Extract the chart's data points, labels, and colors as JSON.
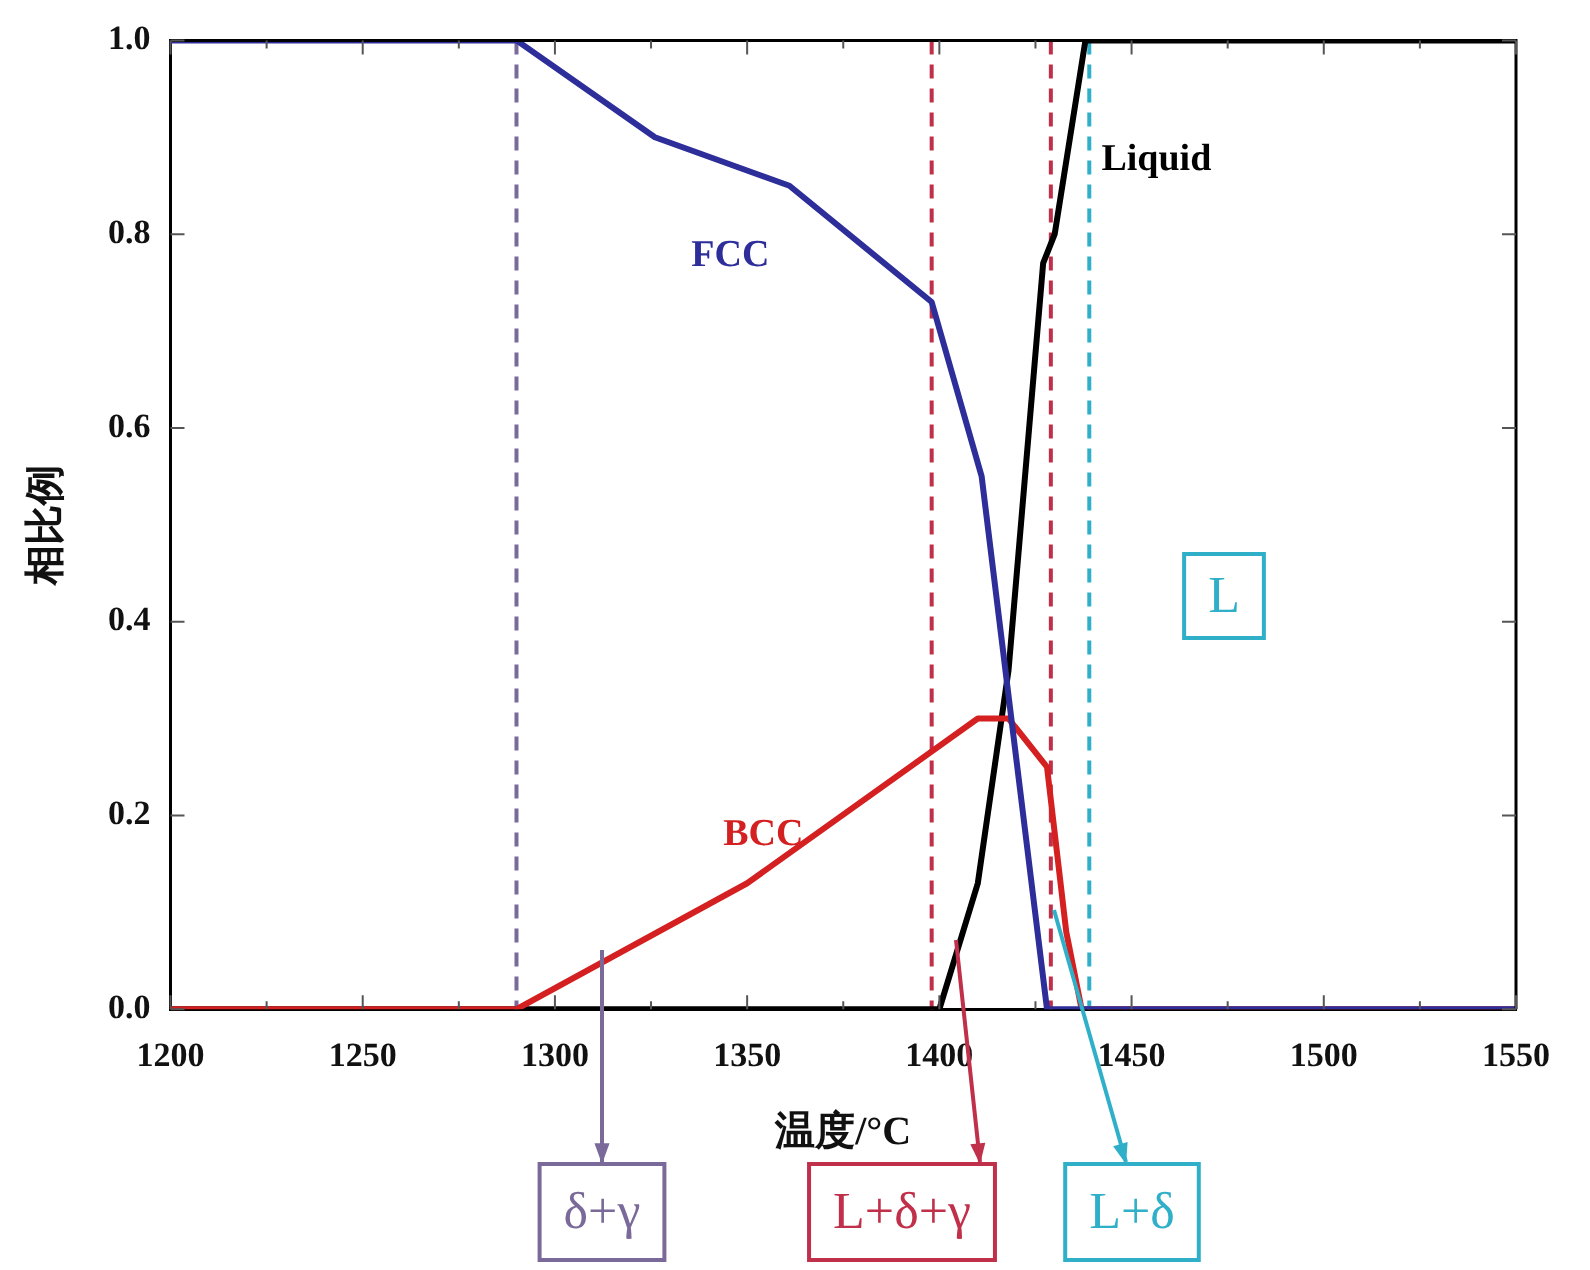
{
  "chart_data": {
    "type": "line",
    "xlabel": "温度/°C",
    "ylabel": "相比例",
    "xlim": [
      1200,
      1550
    ],
    "ylim": [
      0,
      1
    ],
    "xticks": [
      1200,
      {
        "value": 1225,
        "label": null
      },
      1250,
      {
        "value": 1275,
        "label": null
      },
      1300,
      {
        "value": 1325,
        "label": null
      },
      1350,
      {
        "value": 1375,
        "label": null
      },
      1400,
      {
        "value": 1425,
        "label": null
      },
      1450,
      {
        "value": 1475,
        "label": null
      },
      1500,
      {
        "value": 1525,
        "label": null
      },
      1550
    ],
    "yticks": [
      {
        "value": 0,
        "label": "0.0"
      },
      0.2,
      0.4,
      0.6,
      0.8,
      {
        "value": 1,
        "label": "1.0"
      }
    ],
    "marker": "none",
    "line_style": "solid",
    "grid": false,
    "legend": false,
    "series": [
      {
        "name": "FCC",
        "color": "#2e2e9a",
        "x": [
          1200,
          1290,
          1326,
          1361,
          1398,
          1411,
          1428,
          1550
        ],
        "values": [
          1,
          1,
          0.9,
          0.85,
          0.73,
          0.55,
          0,
          0
        ]
      },
      {
        "name": "BCC",
        "color": "#d42020",
        "x": [
          1200,
          1290,
          1350,
          1410,
          1418,
          1428,
          1433,
          1437,
          1550
        ],
        "values": [
          0,
          0,
          0.13,
          0.3,
          0.3,
          0.25,
          0.08,
          0,
          0
        ]
      },
      {
        "name": "Liquid",
        "color": "#000000",
        "x": [
          1200,
          1400,
          1410,
          1418,
          1427,
          1430,
          1438,
          1550
        ],
        "values": [
          0,
          0,
          0.13,
          0.35,
          0.77,
          0.8,
          1,
          1
        ]
      }
    ],
    "ref_lines": [
      {
        "axis": "x",
        "value": 1290,
        "color": "#7a6a9a",
        "line_style": "dashed"
      },
      {
        "axis": "x",
        "value": 1398,
        "color": "#c0304a",
        "line_style": "dashed"
      },
      {
        "axis": "x",
        "value": 1429,
        "color": "#c0304a",
        "line_style": "dashed"
      },
      {
        "axis": "x",
        "value": 1439,
        "color": "#30b0c8",
        "line_style": "dashed"
      }
    ],
    "annotations": [
      "δ+γ",
      "L+δ+γ",
      "L+δ",
      "L"
    ]
  }
}
